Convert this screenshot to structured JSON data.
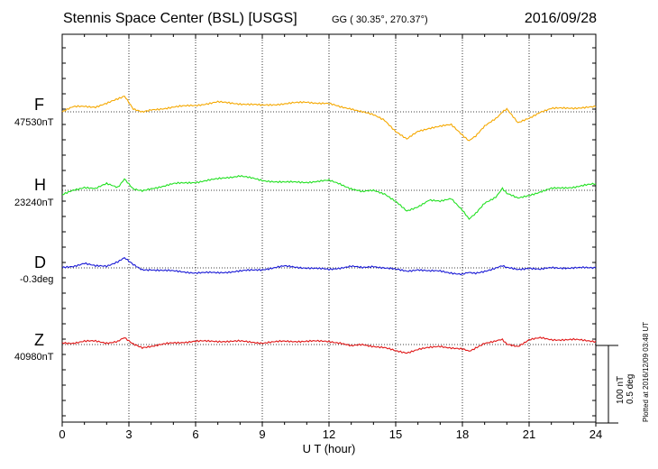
{
  "header": {
    "title": "Stennis Space Center (BSL)  [USGS]",
    "coords": "GG ( 30.35°, 270.37°)",
    "date": "2016/09/28"
  },
  "components": [
    {
      "letter": "F",
      "base": "47530nT",
      "color": "#f5a800"
    },
    {
      "letter": "H",
      "base": "23240nT",
      "color": "#22e022"
    },
    {
      "letter": "D",
      "base": "-0.3deg",
      "color": "#1a1ad6"
    },
    {
      "letter": "Z",
      "base": "40980nT",
      "color": "#e01818"
    }
  ],
  "scale_bar": {
    "nt": "100 nT",
    "deg": "0.5 deg"
  },
  "plotted_note": "Plotted at 2016/12/09 03:48 UT",
  "chart_data": {
    "type": "line",
    "title": "Stennis Space Center (BSL)  [USGS]",
    "xlabel": "U T (hour)",
    "xlim": [
      0,
      24
    ],
    "x_ticks": [
      "0",
      "3",
      "6",
      "9",
      "12",
      "15",
      "18",
      "21",
      "24"
    ],
    "grid": "dotted, every 3 hours; dotted baseline per component",
    "x": [
      0,
      0.5,
      1,
      1.5,
      2,
      2.5,
      2.8,
      3.2,
      3.6,
      4,
      5,
      6,
      7,
      8,
      9,
      10,
      11,
      12,
      12.5,
      13,
      13.5,
      14,
      14.5,
      15,
      15.5,
      16,
      16.5,
      17,
      17.5,
      18,
      18.3,
      18.6,
      19,
      19.5,
      19.8,
      20,
      20.5,
      21,
      21.5,
      22,
      23,
      24
    ],
    "series": [
      {
        "name": "F",
        "baseline": "47530nT",
        "values": [
          0,
          15,
          18,
          15,
          25,
          40,
          50,
          10,
          0,
          5,
          15,
          20,
          30,
          25,
          20,
          25,
          30,
          25,
          15,
          10,
          0,
          -10,
          -25,
          -60,
          -85,
          -60,
          -50,
          -45,
          -40,
          -70,
          -90,
          -75,
          -45,
          -20,
          0,
          10,
          -35,
          -20,
          0,
          10,
          12,
          15
        ]
      },
      {
        "name": "H",
        "baseline": "23240nT",
        "values": [
          -15,
          0,
          10,
          5,
          20,
          10,
          35,
          5,
          0,
          5,
          20,
          25,
          35,
          45,
          30,
          25,
          25,
          30,
          20,
          5,
          -5,
          0,
          -10,
          -35,
          -65,
          -50,
          -30,
          -35,
          -25,
          -60,
          -90,
          -70,
          -40,
          -20,
          5,
          -10,
          -25,
          -15,
          -5,
          5,
          10,
          20
        ]
      },
      {
        "name": "D",
        "baseline": "-0.3deg",
        "values": [
          0,
          5,
          15,
          5,
          5,
          20,
          30,
          10,
          -5,
          -5,
          -10,
          -15,
          -15,
          -10,
          -5,
          5,
          0,
          -5,
          0,
          5,
          0,
          5,
          0,
          -5,
          -10,
          -5,
          -10,
          -10,
          -15,
          -20,
          -15,
          -15,
          -10,
          0,
          5,
          0,
          -5,
          0,
          -5,
          0,
          0,
          0
        ]
      },
      {
        "name": "Z",
        "baseline": "40980nT",
        "values": [
          5,
          5,
          10,
          10,
          5,
          10,
          20,
          0,
          -10,
          -5,
          5,
          10,
          10,
          10,
          5,
          10,
          10,
          10,
          5,
          -5,
          0,
          -5,
          -10,
          -20,
          -25,
          -15,
          -10,
          -5,
          -10,
          -15,
          -20,
          -10,
          5,
          10,
          15,
          0,
          -5,
          15,
          20,
          15,
          15,
          10
        ]
      }
    ],
    "scale_nT_per_px": 2.78
  }
}
